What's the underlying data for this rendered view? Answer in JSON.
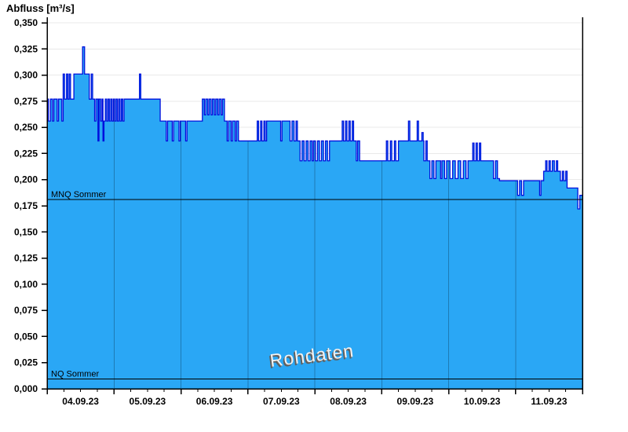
{
  "title": "Abfluss [m³/s]",
  "watermark": "Rohdaten",
  "reference_lines": [
    {
      "label": "MNQ Sommer",
      "value": 0.181
    },
    {
      "label": "NQ Sommer",
      "value": 0.0095
    }
  ],
  "chart_data": {
    "type": "area",
    "title": "Abfluss [m³/s]",
    "ylabel": "Abfluss [m³/s]",
    "x_unit": "days since 04.09.23 00:00",
    "x_range_days": 8,
    "minor_tick_days": 0.25,
    "categories": [
      "04.09.23",
      "05.09.23",
      "06.09.23",
      "07.09.23",
      "08.09.23",
      "09.09.23",
      "10.09.23",
      "11.09.23"
    ],
    "ylim": [
      0,
      0.3553
    ],
    "ytick_step": 0.025,
    "ytick_values": [
      0,
      0.025,
      0.05,
      0.075,
      0.1,
      0.125,
      0.15,
      0.175,
      0.2,
      0.225,
      0.25,
      0.275,
      0.3,
      0.325,
      0.35
    ],
    "ytick_labels": [
      "0,000",
      "0,025",
      "0,050",
      "0,075",
      "0,100",
      "0,125",
      "0,150",
      "0,175",
      "0,200",
      "0,225",
      "0,250",
      "0,275",
      "0,300",
      "0,325",
      "0,350"
    ],
    "grid": "horizontal-major",
    "legend": "none",
    "series": [
      {
        "name": "Abfluss Rohdaten",
        "step": true,
        "points": [
          [
            0.0,
            0.277
          ],
          [
            0.02,
            0.256
          ],
          [
            0.05,
            0.277
          ],
          [
            0.08,
            0.256
          ],
          [
            0.1,
            0.277
          ],
          [
            0.15,
            0.256
          ],
          [
            0.17,
            0.277
          ],
          [
            0.22,
            0.256
          ],
          [
            0.24,
            0.301
          ],
          [
            0.26,
            0.277
          ],
          [
            0.29,
            0.301
          ],
          [
            0.31,
            0.277
          ],
          [
            0.33,
            0.301
          ],
          [
            0.35,
            0.277
          ],
          [
            0.4,
            0.301
          ],
          [
            0.53,
            0.327
          ],
          [
            0.56,
            0.301
          ],
          [
            0.63,
            0.277
          ],
          [
            0.66,
            0.301
          ],
          [
            0.68,
            0.277
          ],
          [
            0.71,
            0.256
          ],
          [
            0.73,
            0.277
          ],
          [
            0.76,
            0.237
          ],
          [
            0.775,
            0.277
          ],
          [
            0.8,
            0.256
          ],
          [
            0.82,
            0.277
          ],
          [
            0.835,
            0.237
          ],
          [
            0.85,
            0.256
          ],
          [
            0.87,
            0.277
          ],
          [
            0.89,
            0.256
          ],
          [
            0.91,
            0.277
          ],
          [
            0.93,
            0.256
          ],
          [
            0.95,
            0.277
          ],
          [
            0.97,
            0.256
          ],
          [
            0.99,
            0.277
          ],
          [
            1.01,
            0.256
          ],
          [
            1.03,
            0.277
          ],
          [
            1.05,
            0.256
          ],
          [
            1.07,
            0.277
          ],
          [
            1.09,
            0.256
          ],
          [
            1.11,
            0.277
          ],
          [
            1.13,
            0.256
          ],
          [
            1.15,
            0.277
          ],
          [
            1.38,
            0.301
          ],
          [
            1.4,
            0.277
          ],
          [
            1.69,
            0.256
          ],
          [
            1.78,
            0.237
          ],
          [
            1.8,
            0.256
          ],
          [
            1.87,
            0.237
          ],
          [
            1.89,
            0.256
          ],
          [
            1.97,
            0.237
          ],
          [
            1.99,
            0.256
          ],
          [
            2.07,
            0.237
          ],
          [
            2.09,
            0.256
          ],
          [
            2.32,
            0.277
          ],
          [
            2.35,
            0.262
          ],
          [
            2.37,
            0.277
          ],
          [
            2.4,
            0.262
          ],
          [
            2.42,
            0.277
          ],
          [
            2.45,
            0.262
          ],
          [
            2.47,
            0.277
          ],
          [
            2.5,
            0.262
          ],
          [
            2.52,
            0.277
          ],
          [
            2.55,
            0.262
          ],
          [
            2.57,
            0.277
          ],
          [
            2.6,
            0.262
          ],
          [
            2.62,
            0.277
          ],
          [
            2.65,
            0.256
          ],
          [
            2.69,
            0.237
          ],
          [
            2.71,
            0.256
          ],
          [
            2.75,
            0.237
          ],
          [
            2.77,
            0.256
          ],
          [
            2.81,
            0.237
          ],
          [
            2.83,
            0.256
          ],
          [
            2.86,
            0.237
          ],
          [
            3.14,
            0.256
          ],
          [
            3.16,
            0.237
          ],
          [
            3.19,
            0.256
          ],
          [
            3.21,
            0.237
          ],
          [
            3.24,
            0.256
          ],
          [
            3.26,
            0.237
          ],
          [
            3.28,
            0.256
          ],
          [
            3.49,
            0.237
          ],
          [
            3.51,
            0.256
          ],
          [
            3.63,
            0.237
          ],
          [
            3.66,
            0.256
          ],
          [
            3.69,
            0.237
          ],
          [
            3.72,
            0.256
          ],
          [
            3.74,
            0.237
          ],
          [
            3.78,
            0.218
          ],
          [
            3.81,
            0.237
          ],
          [
            3.84,
            0.218
          ],
          [
            3.87,
            0.237
          ],
          [
            3.9,
            0.218
          ],
          [
            3.93,
            0.237
          ],
          [
            3.96,
            0.218
          ],
          [
            3.98,
            0.237
          ],
          [
            4.01,
            0.218
          ],
          [
            4.04,
            0.237
          ],
          [
            4.07,
            0.218
          ],
          [
            4.1,
            0.237
          ],
          [
            4.13,
            0.218
          ],
          [
            4.16,
            0.237
          ],
          [
            4.19,
            0.218
          ],
          [
            4.22,
            0.237
          ],
          [
            4.41,
            0.256
          ],
          [
            4.43,
            0.237
          ],
          [
            4.46,
            0.256
          ],
          [
            4.48,
            0.237
          ],
          [
            4.51,
            0.256
          ],
          [
            4.53,
            0.237
          ],
          [
            4.56,
            0.256
          ],
          [
            4.58,
            0.237
          ],
          [
            4.62,
            0.218
          ],
          [
            4.64,
            0.237
          ],
          [
            4.67,
            0.218
          ],
          [
            5.07,
            0.237
          ],
          [
            5.09,
            0.218
          ],
          [
            5.13,
            0.237
          ],
          [
            5.15,
            0.218
          ],
          [
            5.19,
            0.237
          ],
          [
            5.21,
            0.218
          ],
          [
            5.25,
            0.237
          ],
          [
            5.4,
            0.256
          ],
          [
            5.42,
            0.237
          ],
          [
            5.53,
            0.256
          ],
          [
            5.55,
            0.237
          ],
          [
            5.6,
            0.245
          ],
          [
            5.62,
            0.237
          ],
          [
            5.63,
            0.218
          ],
          [
            5.66,
            0.237
          ],
          [
            5.68,
            0.218
          ],
          [
            5.72,
            0.201
          ],
          [
            5.75,
            0.218
          ],
          [
            5.78,
            0.201
          ],
          [
            5.81,
            0.218
          ],
          [
            5.88,
            0.201
          ],
          [
            5.9,
            0.218
          ],
          [
            5.94,
            0.201
          ],
          [
            5.97,
            0.218
          ],
          [
            6.02,
            0.201
          ],
          [
            6.06,
            0.218
          ],
          [
            6.1,
            0.201
          ],
          [
            6.14,
            0.218
          ],
          [
            6.18,
            0.201
          ],
          [
            6.22,
            0.218
          ],
          [
            6.26,
            0.201
          ],
          [
            6.29,
            0.218
          ],
          [
            6.36,
            0.235
          ],
          [
            6.38,
            0.218
          ],
          [
            6.41,
            0.235
          ],
          [
            6.43,
            0.218
          ],
          [
            6.46,
            0.235
          ],
          [
            6.48,
            0.218
          ],
          [
            6.67,
            0.201
          ],
          [
            6.7,
            0.218
          ],
          [
            6.73,
            0.201
          ],
          [
            6.76,
            0.199
          ],
          [
            7.03,
            0.185
          ],
          [
            7.06,
            0.199
          ],
          [
            7.09,
            0.185
          ],
          [
            7.12,
            0.199
          ],
          [
            7.36,
            0.185
          ],
          [
            7.38,
            0.199
          ],
          [
            7.42,
            0.208
          ],
          [
            7.45,
            0.218
          ],
          [
            7.47,
            0.208
          ],
          [
            7.5,
            0.218
          ],
          [
            7.52,
            0.208
          ],
          [
            7.55,
            0.218
          ],
          [
            7.58,
            0.208
          ],
          [
            7.61,
            0.218
          ],
          [
            7.63,
            0.208
          ],
          [
            7.67,
            0.199
          ],
          [
            7.7,
            0.208
          ],
          [
            7.72,
            0.199
          ],
          [
            7.75,
            0.208
          ],
          [
            7.77,
            0.192
          ],
          [
            7.93,
            0.172
          ],
          [
            7.96,
            0.185
          ],
          [
            8.0,
            0.185
          ]
        ]
      }
    ],
    "annotations": [
      {
        "text": "MNQ Sommer",
        "y": 0.181
      },
      {
        "text": "NQ Sommer",
        "y": 0.0095
      },
      {
        "text": "Rohdaten",
        "role": "watermark"
      }
    ],
    "colors": {
      "area_fill": "#2aa7f5",
      "step_line": "#0010dd",
      "grid_line": "#e9e9e9",
      "day_line_on_fill": "#1d7ab5",
      "axis": "#000000",
      "reference_line": "#000000",
      "watermark_text": "#f2f2f2"
    }
  }
}
